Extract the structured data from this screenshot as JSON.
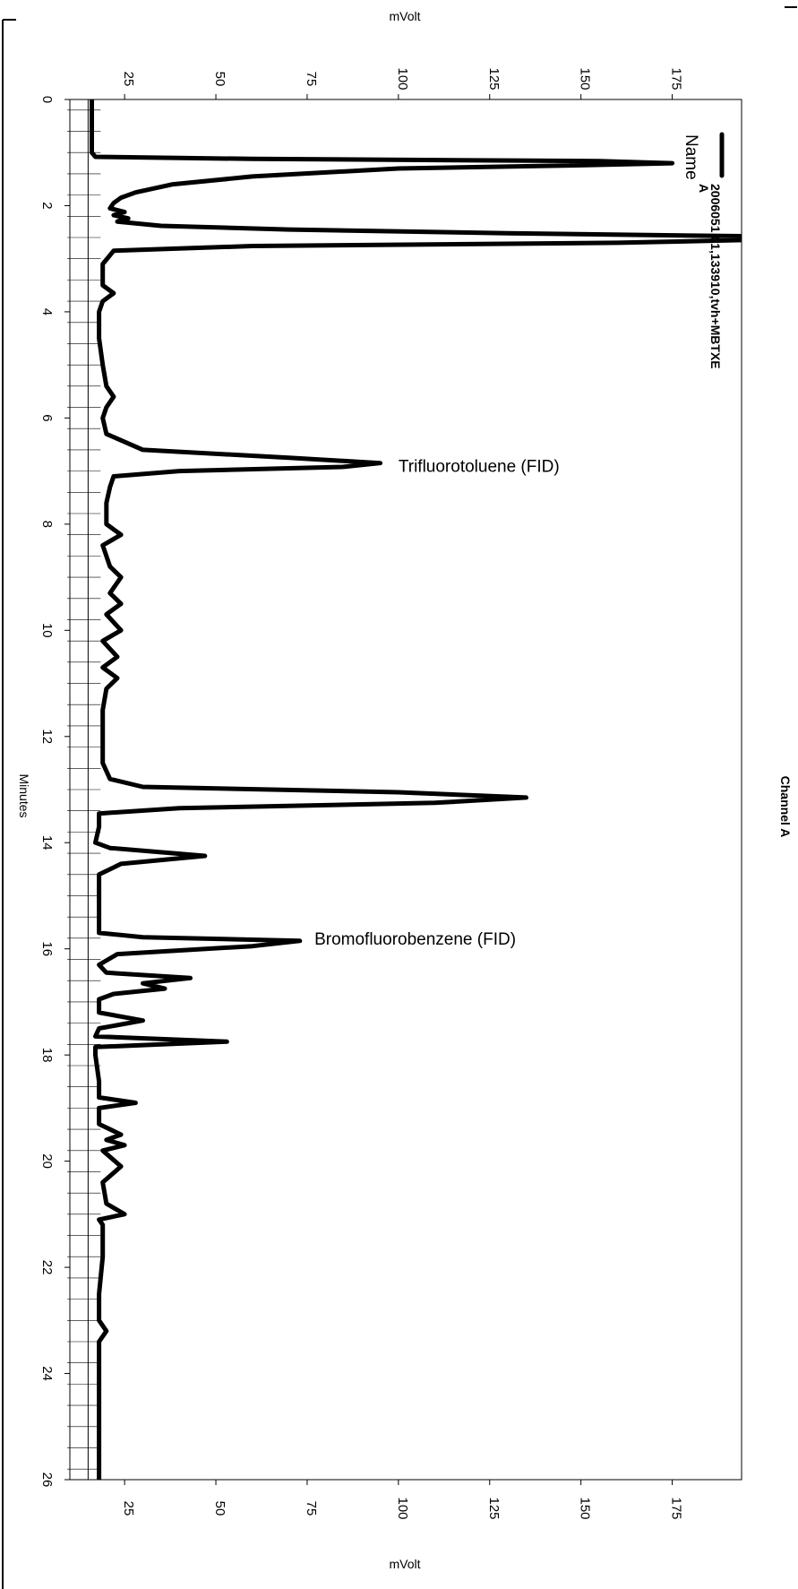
{
  "chart_data": {
    "type": "line",
    "channel_title": "Channel A",
    "xlabel": "Minutes",
    "ylabel": "mVolt",
    "xlim": [
      0,
      26
    ],
    "ylim": [
      10,
      194
    ],
    "x_ticks": [
      0,
      2,
      4,
      6,
      8,
      10,
      12,
      14,
      16,
      18,
      20,
      22,
      24,
      26
    ],
    "y_ticks": [
      25,
      50,
      75,
      100,
      125,
      150,
      175
    ],
    "baseline_mv": 15,
    "legend": {
      "header": "Name",
      "entry_id": "A",
      "entry_name": "2006051 01,133910,tvh+MBTXE"
    },
    "annotations": [
      {
        "text": "Trifluorotoluene (FID)",
        "x": 6.9,
        "y": 100
      },
      {
        "text": "Bromofluorobenzene (FID)",
        "x": 15.8,
        "y": 77
      }
    ],
    "series": [
      {
        "id": "A",
        "x": [
          0,
          0.5,
          1.0,
          1.08,
          1.12,
          1.16,
          1.2,
          1.24,
          1.3,
          1.45,
          1.6,
          1.75,
          1.85,
          1.95,
          2.05,
          2.12,
          2.18,
          2.24,
          2.3,
          2.38,
          2.45,
          2.52,
          2.58,
          2.64,
          2.7,
          2.76,
          2.85,
          3.1,
          3.5,
          3.65,
          3.8,
          4.0,
          4.5,
          5.0,
          5.4,
          5.6,
          5.8,
          6.0,
          6.3,
          6.6,
          6.75,
          6.85,
          6.92,
          7.0,
          7.1,
          7.3,
          7.6,
          8.0,
          8.2,
          8.4,
          8.8,
          9.0,
          9.3,
          9.5,
          9.7,
          10.0,
          10.2,
          10.5,
          10.7,
          10.9,
          11.1,
          11.5,
          12.0,
          12.5,
          12.8,
          12.95,
          13.05,
          13.15,
          13.25,
          13.35,
          13.45,
          13.7,
          14.0,
          14.1,
          14.25,
          14.4,
          14.6,
          15.0,
          15.5,
          15.7,
          15.78,
          15.85,
          15.95,
          16.1,
          16.3,
          16.45,
          16.55,
          16.65,
          16.75,
          16.85,
          16.95,
          17.2,
          17.35,
          17.5,
          17.65,
          17.75,
          17.85,
          18.0,
          18.5,
          18.8,
          18.9,
          19.0,
          19.3,
          19.5,
          19.6,
          19.7,
          19.8,
          20.1,
          20.4,
          20.8,
          21.0,
          21.1,
          21.2,
          21.4,
          21.8,
          22.5,
          23.0,
          23.2,
          23.4,
          24.0,
          25.0,
          26.0
        ],
        "y": [
          16,
          16,
          16,
          17,
          60,
          155,
          175,
          150,
          100,
          60,
          38,
          28,
          24,
          22,
          21,
          25,
          22,
          26,
          23,
          35,
          70,
          130,
          200,
          200,
          160,
          60,
          22,
          19,
          19,
          22,
          19,
          18,
          18,
          19,
          20,
          22,
          20,
          19,
          20,
          30,
          70,
          95,
          85,
          40,
          22,
          21,
          20,
          20,
          24,
          19,
          21,
          24,
          21,
          24,
          20,
          24,
          19,
          23,
          19,
          23,
          20,
          19,
          19,
          19,
          21,
          30,
          100,
          135,
          110,
          40,
          18,
          18,
          17,
          21,
          47,
          24,
          18,
          18,
          18,
          18,
          30,
          73,
          60,
          23,
          18,
          20,
          43,
          30,
          36,
          22,
          18,
          18,
          30,
          18,
          17,
          53,
          17,
          17,
          18,
          18,
          28,
          18,
          18,
          24,
          20,
          25,
          19,
          24,
          19,
          20,
          25,
          18,
          19,
          19,
          19,
          18,
          18,
          20,
          18,
          18,
          18,
          18
        ]
      }
    ]
  }
}
